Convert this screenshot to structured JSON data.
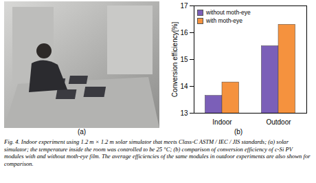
{
  "chart_data": {
    "type": "bar",
    "y_label": "Conversion efficiency[%]",
    "categories": [
      "Indoor",
      "Outdoor"
    ],
    "series": [
      {
        "name": "without moth-eye",
        "color": "#7b5fb8",
        "values": [
          13.65,
          15.5
        ]
      },
      {
        "name": "with moth-eye",
        "color": "#f5923e",
        "values": [
          14.15,
          16.3
        ]
      }
    ],
    "ylim": [
      13,
      17
    ],
    "yticks": [
      13,
      14,
      15,
      16,
      17
    ],
    "grid": false,
    "legend": "top-left"
  },
  "photo_label": "(a)",
  "chart_label": "(b)",
  "caption": "Fig. 4. Indoor experiment using 1.2 m × 1.2 m solar simulator that meets Class-C ASTM / IEC / JIS standards; (a) solar simulator; the temperature inside the room was controlled to be 25 °C; (b) comparison of conversion efficiency of c-Si PV modules with and without moth-eye film. The average efficiencies of the same modules in outdoor experiments are also shown for comparison."
}
